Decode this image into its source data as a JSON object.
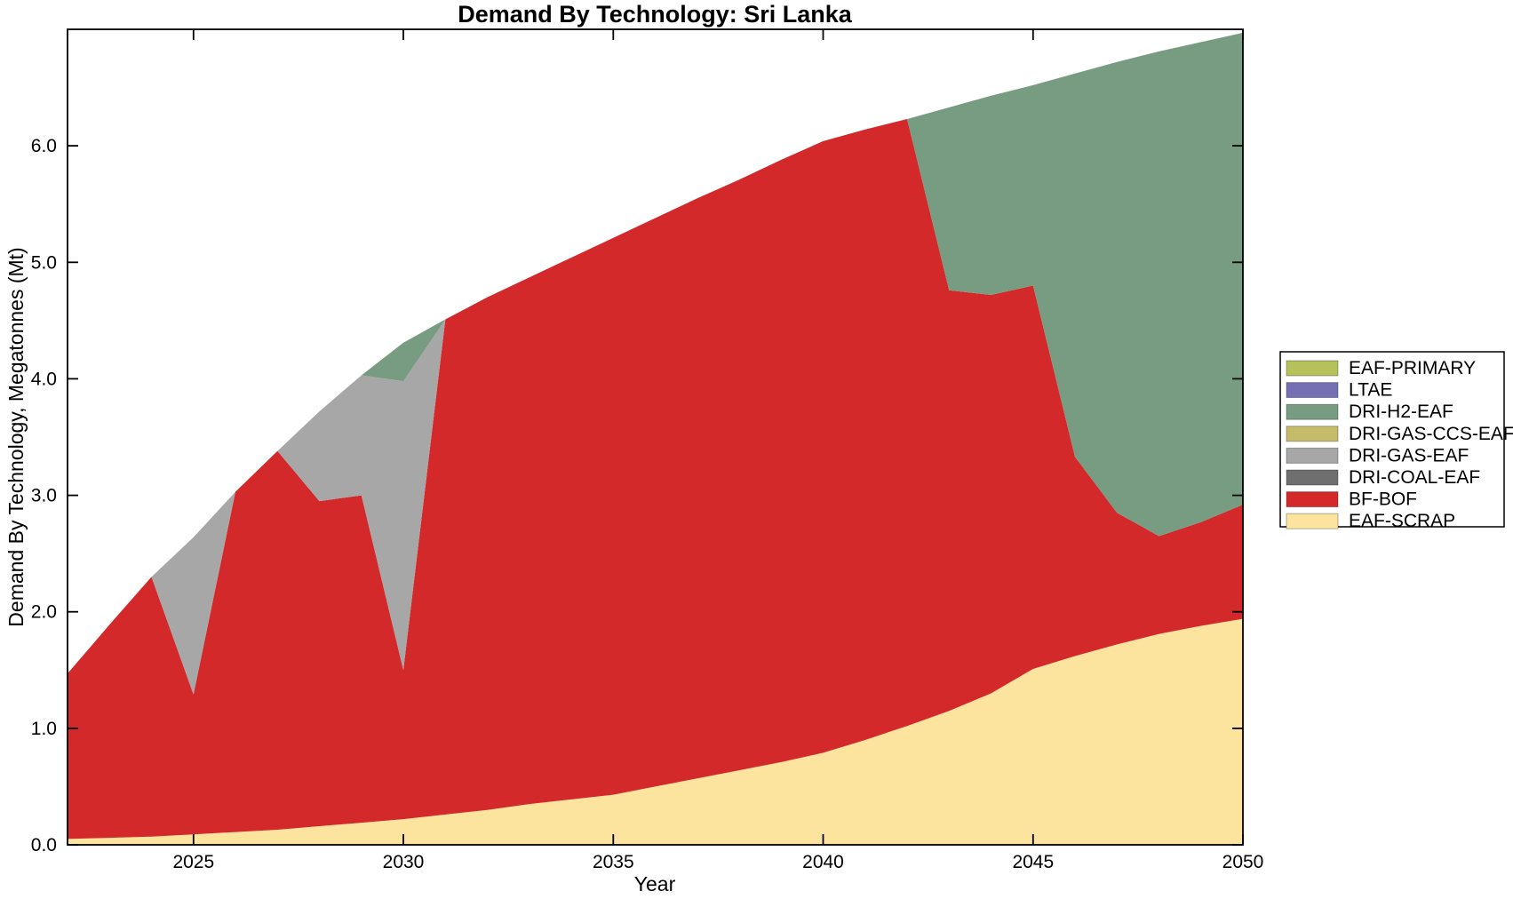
{
  "title": "Demand By Technology: Sri Lanka",
  "axes": {
    "xlabel": "Year",
    "ylabel": "Demand By Technology, Megatonnes (Mt)"
  },
  "chart_data": {
    "type": "area",
    "stacked": true,
    "title": "Demand By Technology: Sri Lanka",
    "xlabel": "Year",
    "ylabel": "Demand By Technology, Megatonnes (Mt)",
    "xlim": [
      2022,
      2050
    ],
    "ylim": [
      0,
      7
    ],
    "grid": false,
    "legend_position": "right-outside",
    "xticks": [
      {
        "label": "2025",
        "value": 2025
      },
      {
        "label": "2030",
        "value": 2030
      },
      {
        "label": "2035",
        "value": 2035
      },
      {
        "label": "2040",
        "value": 2040
      },
      {
        "label": "2045",
        "value": 2045
      },
      {
        "label": "2050",
        "value": 2050
      }
    ],
    "yticks": [
      {
        "label": "0.0",
        "value": 0
      },
      {
        "label": "1.0",
        "value": 1
      },
      {
        "label": "2.0",
        "value": 2
      },
      {
        "label": "3.0",
        "value": 3
      },
      {
        "label": "4.0",
        "value": 4
      },
      {
        "label": "5.0",
        "value": 5
      },
      {
        "label": "6.0",
        "value": 6
      }
    ],
    "x": [
      2022,
      2023,
      2024,
      2025,
      2026,
      2027,
      2028,
      2029,
      2030,
      2031,
      2032,
      2033,
      2034,
      2035,
      2036,
      2037,
      2038,
      2039,
      2040,
      2041,
      2042,
      2043,
      2044,
      2045,
      2046,
      2047,
      2048,
      2049,
      2050
    ],
    "series": [
      {
        "name": "EAF-SCRAP",
        "color": "#fce49e",
        "values": [
          0.05,
          0.06,
          0.07,
          0.09,
          0.11,
          0.13,
          0.16,
          0.19,
          0.22,
          0.26,
          0.3,
          0.35,
          0.39,
          0.43,
          0.5,
          0.57,
          0.64,
          0.71,
          0.79,
          0.9,
          1.02,
          1.15,
          1.3,
          1.51,
          1.62,
          1.72,
          1.81,
          1.88,
          1.94
        ]
      },
      {
        "name": "BF-BOF",
        "color": "#d3292b",
        "values": [
          1.42,
          1.83,
          2.23,
          1.2,
          2.92,
          3.25,
          2.79,
          2.81,
          1.28,
          4.25,
          4.4,
          4.52,
          4.65,
          4.78,
          4.88,
          4.98,
          5.07,
          5.17,
          5.25,
          5.24,
          5.21,
          3.61,
          3.42,
          3.29,
          1.71,
          1.13,
          0.84,
          0.89,
          0.98
        ]
      },
      {
        "name": "DRI-COAL-EAF",
        "color": "#6f6f6f",
        "values": [
          0,
          0,
          0,
          0,
          0,
          0,
          0,
          0,
          0,
          0,
          0,
          0,
          0,
          0,
          0,
          0,
          0,
          0,
          0,
          0,
          0,
          0,
          0,
          0,
          0,
          0,
          0,
          0,
          0
        ]
      },
      {
        "name": "DRI-GAS-EAF",
        "color": "#a7a7a7",
        "values": [
          0,
          0,
          0,
          1.35,
          0,
          0,
          0.77,
          1.03,
          2.48,
          0,
          0,
          0,
          0,
          0,
          0,
          0,
          0,
          0,
          0,
          0,
          0,
          0,
          0,
          0,
          0,
          0,
          0,
          0,
          0
        ]
      },
      {
        "name": "DRI-GAS-CCS-EAF",
        "color": "#c6bb6a",
        "values": [
          0,
          0,
          0,
          0,
          0,
          0,
          0,
          0,
          0,
          0,
          0,
          0,
          0,
          0,
          0,
          0,
          0,
          0,
          0,
          0,
          0,
          0,
          0,
          0,
          0,
          0,
          0,
          0,
          0
        ]
      },
      {
        "name": "DRI-H2-EAF",
        "color": "#779c81",
        "values": [
          0,
          0,
          0,
          0,
          0,
          0,
          0,
          0,
          0.33,
          0,
          0,
          0,
          0,
          0,
          0,
          0,
          0,
          0,
          0,
          0,
          0,
          1.57,
          1.71,
          1.72,
          3.29,
          3.87,
          4.16,
          4.12,
          4.05
        ]
      },
      {
        "name": "LTAE",
        "color": "#7570b3",
        "values": [
          0,
          0,
          0,
          0,
          0,
          0,
          0,
          0,
          0,
          0,
          0,
          0,
          0,
          0,
          0,
          0,
          0,
          0,
          0,
          0,
          0,
          0,
          0,
          0,
          0,
          0,
          0,
          0,
          0
        ]
      },
      {
        "name": "EAF-PRIMARY",
        "color": "#b7c15c",
        "values": [
          0,
          0,
          0,
          0,
          0,
          0,
          0,
          0,
          0,
          0,
          0,
          0,
          0,
          0,
          0,
          0,
          0,
          0,
          0,
          0,
          0,
          0,
          0,
          0,
          0,
          0,
          0,
          0,
          0
        ]
      }
    ],
    "legend": [
      {
        "label": "EAF-PRIMARY",
        "color": "#b7c15c"
      },
      {
        "label": "LTAE",
        "color": "#7570b3"
      },
      {
        "label": "DRI-H2-EAF",
        "color": "#779c81"
      },
      {
        "label": "DRI-GAS-CCS-EAF",
        "color": "#c6bb6a"
      },
      {
        "label": "DRI-GAS-EAF",
        "color": "#a7a7a7"
      },
      {
        "label": "DRI-COAL-EAF",
        "color": "#6f6f6f"
      },
      {
        "label": "BF-BOF",
        "color": "#d3292b"
      },
      {
        "label": "EAF-SCRAP",
        "color": "#fce49e"
      }
    ]
  }
}
